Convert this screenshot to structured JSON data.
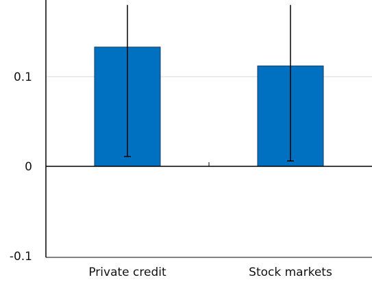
{
  "chart_data": {
    "type": "bar",
    "categories": [
      "Private credit",
      "Stock markets"
    ],
    "series": [
      {
        "values": [
          0.133,
          0.112
        ],
        "error_low": [
          0.011,
          0.006
        ],
        "error_high": [
          0.18,
          0.18
        ],
        "color": "#0070C0"
      }
    ],
    "y_ticks": [
      {
        "value": 0.1,
        "label": "0.1"
      },
      {
        "value": 0,
        "label": "0"
      },
      {
        "value": -0.1,
        "label": "-0.1"
      }
    ],
    "ylim": [
      -0.1,
      0.18
    ],
    "grid": true,
    "title": "",
    "xlabel": "",
    "ylabel": ""
  },
  "colors": {
    "bar": "#0070C0",
    "bar_edge": "#1a3a5c",
    "grid": "#d9d9d9",
    "axis": "#000000",
    "error_bar": "#000000"
  }
}
